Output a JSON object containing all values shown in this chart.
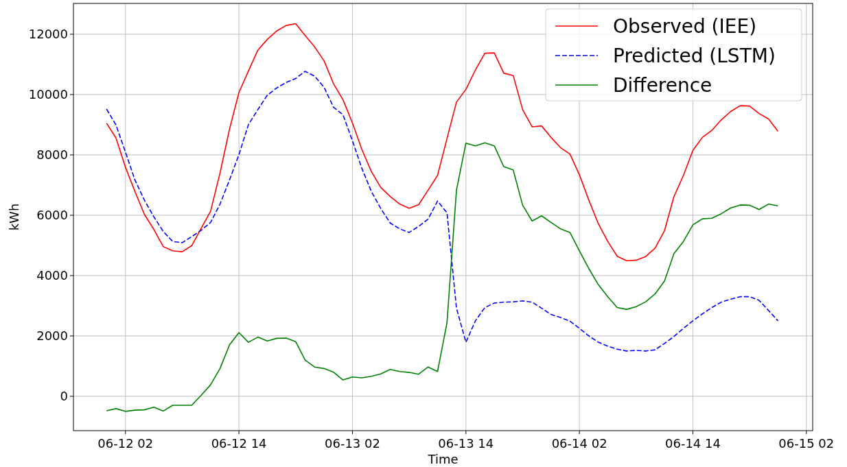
{
  "chart_data": {
    "type": "line",
    "xlabel": "Time",
    "ylabel": "kWh",
    "x": [
      "--06-12T00:00",
      "--06-12T01:00",
      "--06-12T02:00",
      "--06-12T03:00",
      "--06-12T04:00",
      "--06-12T05:00",
      "--06-12T06:00",
      "--06-12T07:00",
      "--06-12T08:00",
      "--06-12T09:00",
      "--06-12T10:00",
      "--06-12T11:00",
      "--06-12T12:00",
      "--06-12T13:00",
      "--06-12T14:00",
      "--06-12T15:00",
      "--06-12T16:00",
      "--06-12T17:00",
      "--06-12T18:00",
      "--06-12T19:00",
      "--06-12T20:00",
      "--06-12T21:00",
      "--06-12T22:00",
      "--06-12T23:00",
      "--06-13T00:00",
      "--06-13T01:00",
      "--06-13T02:00",
      "--06-13T03:00",
      "--06-13T04:00",
      "--06-13T05:00",
      "--06-13T06:00",
      "--06-13T07:00",
      "--06-13T08:00",
      "--06-13T09:00",
      "--06-13T10:00",
      "--06-13T11:00",
      "--06-13T12:00",
      "--06-13T13:00",
      "--06-13T14:00",
      "--06-13T15:00",
      "--06-13T16:00",
      "--06-13T17:00",
      "--06-13T18:00",
      "--06-13T19:00",
      "--06-13T20:00",
      "--06-13T21:00",
      "--06-13T22:00",
      "--06-13T23:00",
      "--06-14T00:00",
      "--06-14T01:00",
      "--06-14T02:00",
      "--06-14T03:00",
      "--06-14T04:00",
      "--06-14T05:00",
      "--06-14T06:00",
      "--06-14T07:00",
      "--06-14T08:00",
      "--06-14T09:00",
      "--06-14T10:00",
      "--06-14T11:00",
      "--06-14T12:00",
      "--06-14T13:00",
      "--06-14T14:00",
      "--06-14T15:00",
      "--06-14T16:00",
      "--06-14T17:00",
      "--06-14T18:00",
      "--06-14T19:00",
      "--06-14T20:00",
      "--06-14T21:00",
      "--06-14T22:00",
      "--06-14T23:00"
    ],
    "series": [
      {
        "name": "Observed (IEE)",
        "color": "#ff0000",
        "line_style": "solid",
        "values": [
          9050,
          8560,
          7590,
          6790,
          6030,
          5530,
          4960,
          4820,
          4790,
          4990,
          5560,
          6130,
          7400,
          8850,
          10070,
          10780,
          11470,
          11830,
          12110,
          12290,
          12350,
          11960,
          11580,
          11120,
          10360,
          9830,
          9060,
          8180,
          7450,
          6920,
          6620,
          6370,
          6230,
          6350,
          6830,
          7320,
          8540,
          9750,
          10170,
          10810,
          11370,
          11380,
          10710,
          10630,
          9500,
          8930,
          8960,
          8580,
          8240,
          8030,
          7340,
          6500,
          5720,
          5130,
          4640,
          4490,
          4510,
          4630,
          4910,
          5490,
          6620,
          7320,
          8150,
          8580,
          8810,
          9160,
          9440,
          9630,
          9620,
          9370,
          9190,
          8780
        ]
      },
      {
        "name": "Predicted (LSTM)",
        "color": "#0000ff",
        "line_style": "dashed",
        "values": [
          9520,
          8990,
          8090,
          7170,
          6500,
          5950,
          5460,
          5130,
          5090,
          5290,
          5500,
          5760,
          6370,
          7170,
          8010,
          9000,
          9500,
          9980,
          10220,
          10400,
          10530,
          10770,
          10610,
          10240,
          9580,
          9330,
          8470,
          7550,
          6790,
          6220,
          5740,
          5550,
          5430,
          5630,
          5870,
          6470,
          6080,
          2920,
          1790,
          2500,
          2940,
          3090,
          3120,
          3130,
          3160,
          3120,
          2920,
          2710,
          2610,
          2490,
          2250,
          2000,
          1790,
          1660,
          1560,
          1500,
          1520,
          1500,
          1540,
          1750,
          1980,
          2250,
          2500,
          2730,
          2940,
          3120,
          3220,
          3300,
          3300,
          3180,
          2840,
          2500
        ]
      },
      {
        "name": "Difference",
        "color": "#008000",
        "line_style": "solid",
        "values": [
          -480,
          -410,
          -500,
          -460,
          -450,
          -360,
          -490,
          -300,
          -300,
          -300,
          30,
          380,
          920,
          1700,
          2110,
          1790,
          1960,
          1830,
          1920,
          1930,
          1810,
          1200,
          970,
          920,
          800,
          540,
          640,
          610,
          660,
          740,
          890,
          820,
          790,
          730,
          970,
          820,
          2440,
          6830,
          8390,
          8300,
          8400,
          8300,
          7610,
          7500,
          6330,
          5810,
          5980,
          5760,
          5550,
          5430,
          4820,
          4230,
          3700,
          3300,
          2940,
          2880,
          2970,
          3130,
          3390,
          3820,
          4730,
          5130,
          5680,
          5880,
          5900,
          6050,
          6240,
          6340,
          6330,
          6190,
          6370,
          6310
        ]
      }
    ],
    "xlim": [
      "--06-11T20:30",
      "--06-15T02:40"
    ],
    "xticks": [
      {
        "value": "--06-12T02:00",
        "label": "06-12 02"
      },
      {
        "value": "--06-12T14:00",
        "label": "06-12 14"
      },
      {
        "value": "--06-13T02:00",
        "label": "06-13 02"
      },
      {
        "value": "--06-13T14:00",
        "label": "06-13 14"
      },
      {
        "value": "--06-14T02:00",
        "label": "06-14 02"
      },
      {
        "value": "--06-14T14:00",
        "label": "06-14 14"
      },
      {
        "value": "--06-15T02:00",
        "label": "06-15 02"
      }
    ],
    "ylim": [
      -1140,
      13020
    ],
    "yticks": [
      0,
      2000,
      4000,
      6000,
      8000,
      10000,
      12000
    ],
    "grid": true,
    "legend": "top right",
    "marker": "none"
  }
}
